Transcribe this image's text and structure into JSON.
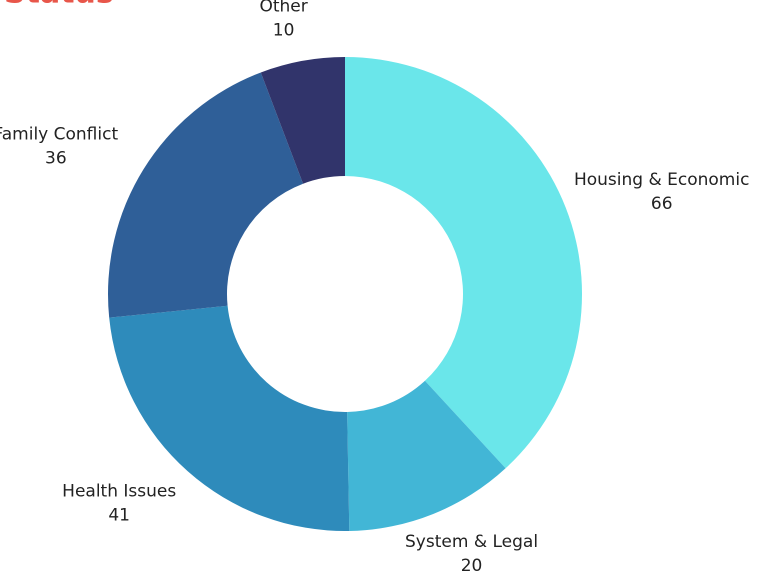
{
  "chart_data": {
    "type": "donut",
    "title": "Status",
    "categories": [
      "Housing & Economic",
      "System & Legal",
      "Health Issues",
      "Family Conflict",
      "Other"
    ],
    "values": [
      66,
      20,
      41,
      36,
      10
    ],
    "colors": [
      "#6ae6ea",
      "#42b6d6",
      "#2e8bbb",
      "#2f5f98",
      "#31346b"
    ]
  }
}
